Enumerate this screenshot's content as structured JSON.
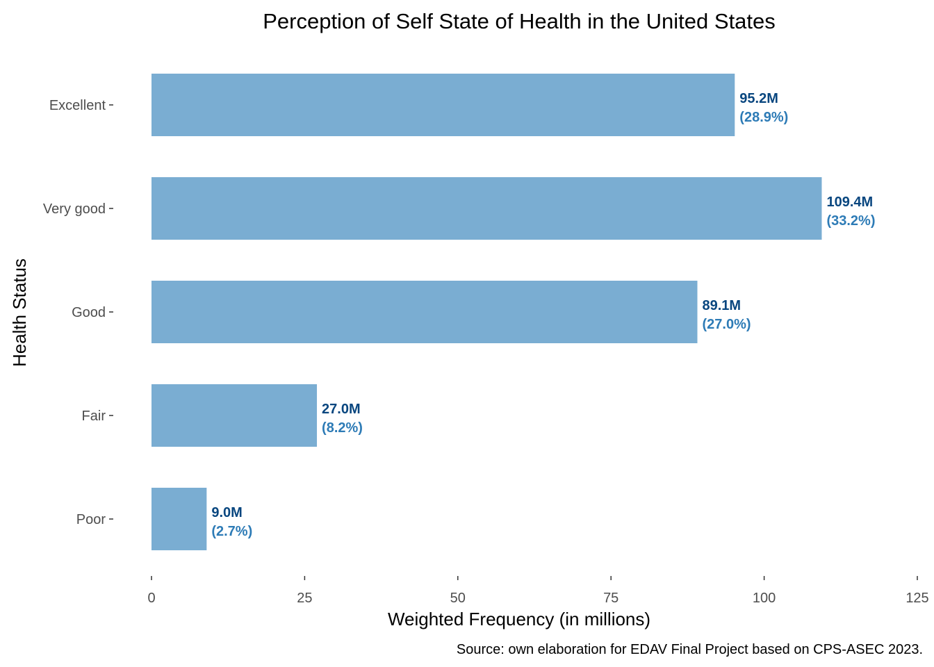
{
  "chart_data": {
    "type": "bar",
    "orientation": "horizontal",
    "title": "Perception of Self State of Health in the United States",
    "xlabel": "Weighted Frequency (in millions)",
    "ylabel": "Health Status",
    "caption": "Source: own elaboration for EDAV Final Project based on CPS-ASEC 2023.",
    "categories": [
      "Excellent",
      "Very good",
      "Good",
      "Fair",
      "Poor"
    ],
    "values": [
      95.2,
      109.4,
      89.1,
      27.0,
      9.0
    ],
    "value_labels": [
      "95.2M",
      "109.4M",
      "89.1M",
      "27.0M",
      "9.0M"
    ],
    "percent_labels": [
      "(28.9%)",
      "(33.2%)",
      "(27.0%)",
      "(8.2%)",
      "(2.7%)"
    ],
    "xlim": [
      0,
      125
    ],
    "xticks": [
      0,
      25,
      50,
      75,
      100,
      125
    ],
    "grid": false,
    "legend": "none",
    "colors": {
      "bar": "#7aadd2",
      "value_label": "#08467f",
      "percent_label": "#2d7bb6",
      "tick": "#333333"
    }
  }
}
